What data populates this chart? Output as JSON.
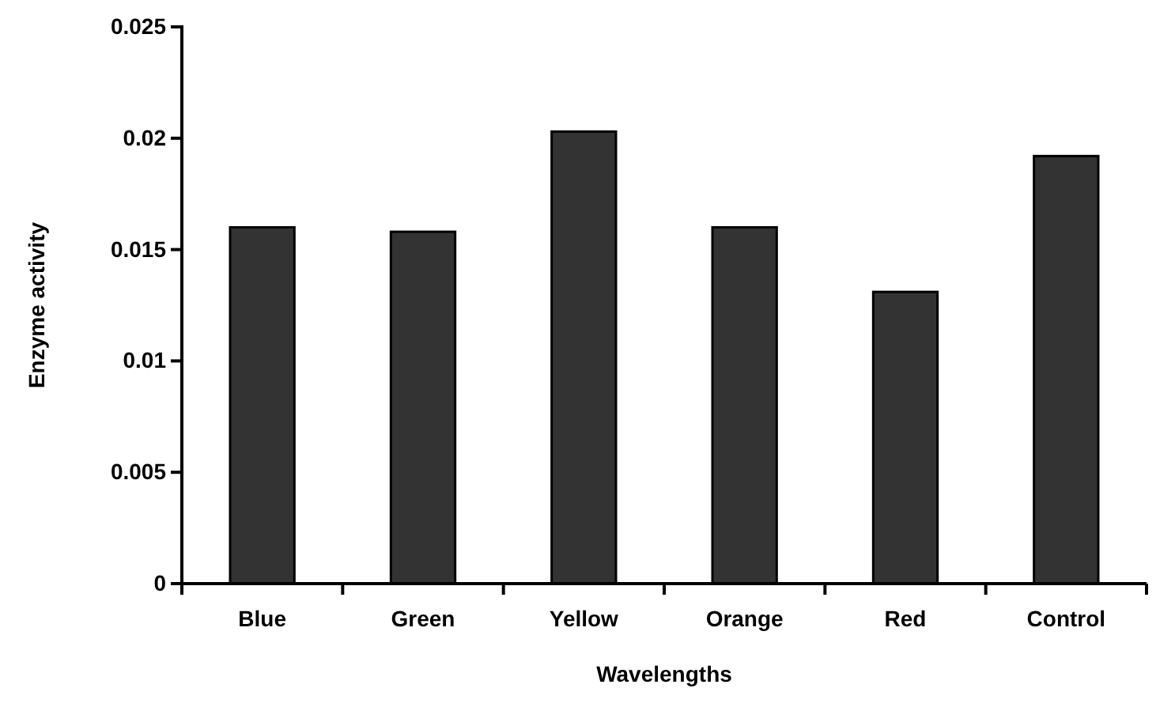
{
  "chart_data": {
    "type": "bar",
    "xlabel": "Wavelengths",
    "ylabel": "Enzyme activity",
    "categories": [
      "Blue",
      "Green",
      "Yellow",
      "Orange",
      "Red",
      "Control"
    ],
    "values": [
      0.016,
      0.0158,
      0.0203,
      0.016,
      0.0131,
      0.0192
    ],
    "color": "#333333",
    "ylim": [
      0,
      0.025
    ],
    "yticks": [
      0,
      0.005,
      0.01,
      0.015,
      0.02,
      0.025
    ]
  }
}
